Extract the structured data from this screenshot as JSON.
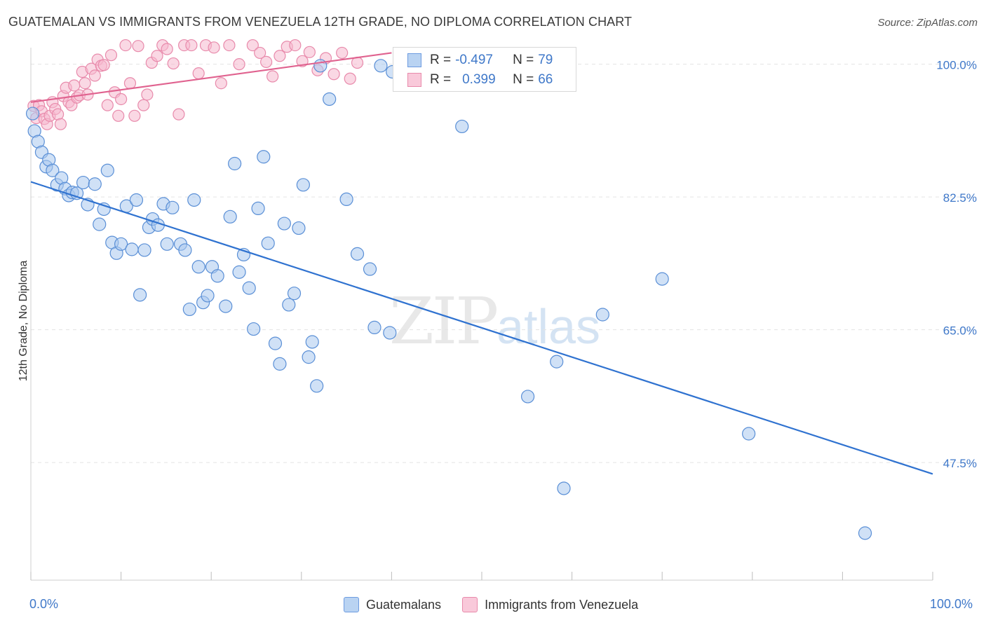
{
  "title": "GUATEMALAN VS IMMIGRANTS FROM VENEZUELA 12TH GRADE, NO DIPLOMA CORRELATION CHART",
  "source": "Source: ZipAtlas.com",
  "watermark": {
    "zip": "ZIP",
    "atlas": "atlas"
  },
  "legend": {
    "rows": [
      {
        "r_label": "R =",
        "r_value": "-0.497",
        "n_label": "N =",
        "n_value": "79"
      },
      {
        "r_label": "R =",
        "r_value": "0.399",
        "n_label": "N =",
        "n_value": "66"
      }
    ]
  },
  "bottom_legend": [
    "Guatemalans",
    "Immigrants from Venezuela"
  ],
  "x_axis": {
    "min_label": "0.0%",
    "max_label": "100.0%"
  },
  "colors": {
    "blue_fill": "#a9c8ee",
    "blue_stroke": "#5a8fd6",
    "blue_line": "#2f72d0",
    "pink_fill": "#f6b8cd",
    "pink_stroke": "#e88aab",
    "pink_line": "#e0628f",
    "tick_text": "#3f78c9",
    "grid": "#e3e3e3"
  },
  "chart_data": {
    "type": "scatter",
    "title": "GUATEMALAN VS IMMIGRANTS FROM VENEZUELA 12TH GRADE, NO DIPLOMA CORRELATION CHART",
    "xlabel": "",
    "ylabel": "12th Grade, No Diploma",
    "xlim": [
      0,
      100
    ],
    "ylim": [
      32,
      102
    ],
    "y_ticks": [
      47.5,
      65.0,
      82.5,
      100.0
    ],
    "y_tick_labels": [
      "47.5%",
      "65.0%",
      "82.5%",
      "100.0%"
    ],
    "grid": true,
    "series": [
      {
        "name": "Guatemalans",
        "color": "#a9c8ee",
        "r": -0.497,
        "n": 79,
        "trend": {
          "x": [
            0,
            100
          ],
          "y": [
            84.5,
            46.0
          ]
        },
        "points": [
          [
            0.2,
            93.5
          ],
          [
            0.4,
            91.2
          ],
          [
            0.8,
            89.8
          ],
          [
            1.2,
            88.4
          ],
          [
            1.7,
            86.5
          ],
          [
            2.0,
            87.4
          ],
          [
            2.4,
            86.0
          ],
          [
            2.9,
            84.1
          ],
          [
            3.4,
            85.0
          ],
          [
            3.8,
            83.6
          ],
          [
            4.2,
            82.7
          ],
          [
            4.6,
            83.1
          ],
          [
            5.1,
            83.0
          ],
          [
            5.8,
            84.4
          ],
          [
            6.3,
            81.5
          ],
          [
            7.1,
            84.2
          ],
          [
            7.6,
            78.9
          ],
          [
            8.1,
            80.9
          ],
          [
            8.5,
            86.0
          ],
          [
            9.0,
            76.5
          ],
          [
            9.5,
            75.1
          ],
          [
            10.0,
            76.3
          ],
          [
            10.6,
            81.3
          ],
          [
            11.2,
            75.6
          ],
          [
            11.7,
            82.1
          ],
          [
            12.1,
            69.6
          ],
          [
            12.6,
            75.5
          ],
          [
            13.1,
            78.5
          ],
          [
            13.5,
            79.6
          ],
          [
            14.1,
            78.8
          ],
          [
            14.7,
            81.6
          ],
          [
            15.1,
            76.3
          ],
          [
            15.7,
            81.1
          ],
          [
            16.6,
            76.3
          ],
          [
            17.1,
            75.5
          ],
          [
            17.6,
            67.7
          ],
          [
            18.1,
            82.1
          ],
          [
            18.6,
            73.3
          ],
          [
            19.1,
            68.6
          ],
          [
            19.6,
            69.5
          ],
          [
            20.1,
            73.3
          ],
          [
            20.7,
            72.1
          ],
          [
            21.6,
            68.1
          ],
          [
            22.1,
            79.9
          ],
          [
            22.6,
            86.9
          ],
          [
            23.1,
            72.6
          ],
          [
            23.6,
            74.9
          ],
          [
            24.2,
            70.5
          ],
          [
            24.7,
            65.1
          ],
          [
            25.2,
            81.0
          ],
          [
            25.8,
            87.8
          ],
          [
            26.3,
            76.4
          ],
          [
            27.1,
            63.2
          ],
          [
            27.6,
            60.5
          ],
          [
            28.1,
            79.0
          ],
          [
            28.6,
            68.3
          ],
          [
            29.2,
            69.8
          ],
          [
            29.7,
            78.4
          ],
          [
            30.2,
            84.1
          ],
          [
            30.8,
            61.4
          ],
          [
            31.2,
            63.4
          ],
          [
            31.7,
            57.6
          ],
          [
            32.1,
            99.8
          ],
          [
            33.1,
            95.4
          ],
          [
            35.0,
            82.2
          ],
          [
            36.2,
            75.0
          ],
          [
            37.6,
            73.0
          ],
          [
            38.1,
            65.3
          ],
          [
            38.8,
            99.8
          ],
          [
            39.8,
            64.6
          ],
          [
            40.1,
            99.0
          ],
          [
            47.8,
            91.8
          ],
          [
            55.1,
            56.2
          ],
          [
            58.3,
            60.8
          ],
          [
            59.1,
            44.1
          ],
          [
            63.4,
            67.0
          ],
          [
            70.0,
            71.7
          ],
          [
            79.6,
            51.3
          ],
          [
            92.5,
            38.2
          ]
        ]
      },
      {
        "name": "Immigrants from Venezuela",
        "color": "#f6b8cd",
        "r": 0.399,
        "n": 66,
        "trend": {
          "x": [
            0,
            40
          ],
          "y": [
            95.0,
            101.5
          ]
        },
        "points": [
          [
            0.3,
            94.5
          ],
          [
            0.6,
            92.9
          ],
          [
            0.9,
            94.6
          ],
          [
            1.2,
            93.8
          ],
          [
            1.5,
            92.8
          ],
          [
            1.8,
            92.1
          ],
          [
            2.1,
            93.2
          ],
          [
            2.4,
            95.0
          ],
          [
            2.7,
            94.1
          ],
          [
            3.0,
            93.4
          ],
          [
            3.3,
            92.1
          ],
          [
            3.6,
            95.8
          ],
          [
            3.9,
            96.9
          ],
          [
            4.2,
            95.0
          ],
          [
            4.5,
            94.6
          ],
          [
            4.8,
            97.2
          ],
          [
            5.1,
            95.6
          ],
          [
            5.4,
            95.9
          ],
          [
            5.7,
            99.0
          ],
          [
            6.0,
            97.5
          ],
          [
            6.3,
            96.0
          ],
          [
            6.7,
            99.4
          ],
          [
            7.1,
            98.5
          ],
          [
            7.4,
            100.6
          ],
          [
            7.8,
            99.8
          ],
          [
            8.1,
            99.9
          ],
          [
            8.5,
            94.6
          ],
          [
            8.9,
            101.2
          ],
          [
            9.3,
            96.3
          ],
          [
            9.7,
            93.2
          ],
          [
            10.0,
            95.4
          ],
          [
            10.5,
            102.5
          ],
          [
            11.0,
            97.5
          ],
          [
            11.5,
            93.2
          ],
          [
            11.9,
            102.4
          ],
          [
            12.5,
            94.6
          ],
          [
            12.9,
            96.0
          ],
          [
            13.4,
            100.2
          ],
          [
            14.0,
            101.1
          ],
          [
            14.6,
            102.5
          ],
          [
            15.1,
            102.0
          ],
          [
            15.8,
            100.1
          ],
          [
            16.4,
            93.4
          ],
          [
            17.0,
            102.5
          ],
          [
            17.8,
            103.2
          ],
          [
            18.6,
            98.8
          ],
          [
            19.4,
            104.2
          ],
          [
            20.3,
            102.2
          ],
          [
            21.1,
            97.5
          ],
          [
            22.0,
            103.5
          ],
          [
            23.1,
            100.0
          ],
          [
            24.6,
            103.3
          ],
          [
            25.4,
            101.5
          ],
          [
            26.1,
            100.3
          ],
          [
            26.8,
            98.4
          ],
          [
            27.6,
            101.1
          ],
          [
            28.4,
            102.3
          ],
          [
            29.3,
            103.1
          ],
          [
            30.1,
            100.4
          ],
          [
            30.9,
            101.6
          ],
          [
            31.8,
            99.2
          ],
          [
            32.7,
            100.8
          ],
          [
            33.6,
            98.7
          ],
          [
            34.5,
            101.5
          ],
          [
            35.4,
            98.1
          ],
          [
            36.2,
            100.2
          ]
        ]
      }
    ]
  }
}
